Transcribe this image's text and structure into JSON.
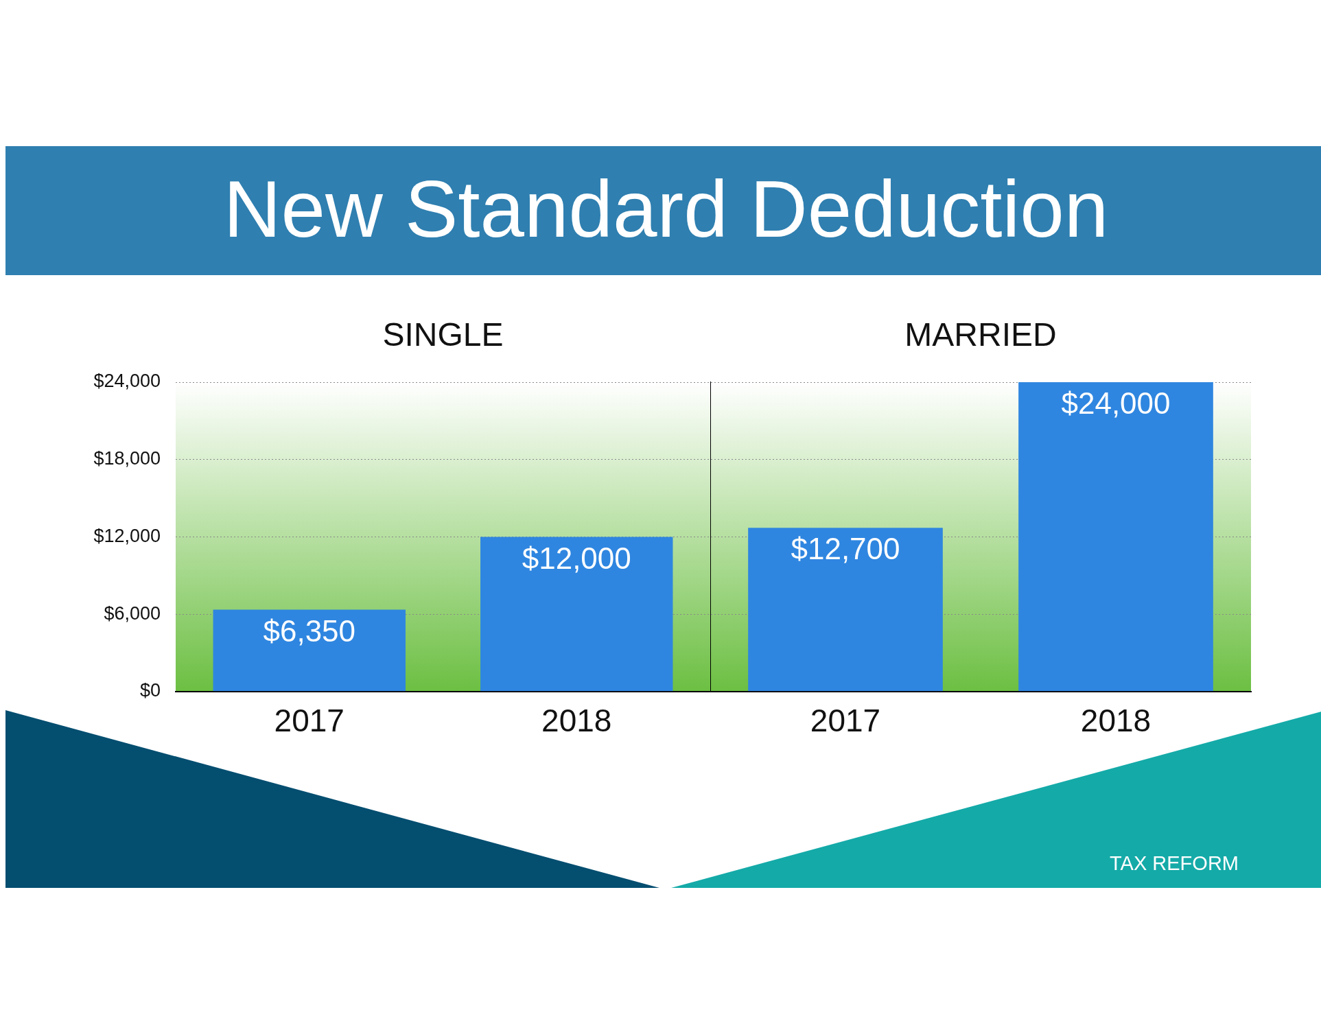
{
  "chart_data": [
    {
      "type": "bar",
      "title": "New Standard Deduction",
      "subtitle": "SINGLE",
      "categories": [
        "2017",
        "2018"
      ],
      "values": [
        6350,
        12000
      ],
      "value_labels": [
        "$6,350",
        "$12,000"
      ],
      "color": "#2f86e0",
      "ylim": [
        0,
        24000
      ],
      "yticks": [
        {
          "value": 0,
          "label": "$0"
        },
        {
          "value": 6000,
          "label": "$6,000"
        },
        {
          "value": 12000,
          "label": "$12,000"
        },
        {
          "value": 18000,
          "label": "$18,000"
        },
        {
          "value": 24000,
          "label": "$24,000"
        }
      ],
      "grid": "y",
      "legend": false
    },
    {
      "type": "bar",
      "subtitle": "MARRIED",
      "categories": [
        "2017",
        "2018"
      ],
      "values": [
        12700,
        24000
      ],
      "value_labels": [
        "$12,700",
        "$24,000"
      ],
      "color": "#2f86e0",
      "ylim": [
        0,
        24000
      ],
      "yticks": [
        {
          "value": 0,
          "label": null
        },
        {
          "value": 6000,
          "label": null
        },
        {
          "value": 12000,
          "label": null
        },
        {
          "value": 18000,
          "label": null
        },
        {
          "value": 24000,
          "label": null
        }
      ],
      "grid": "y",
      "legend": false,
      "tick_labels": "x",
      "annotations": [
        "TAX REFORM"
      ]
    }
  ]
}
